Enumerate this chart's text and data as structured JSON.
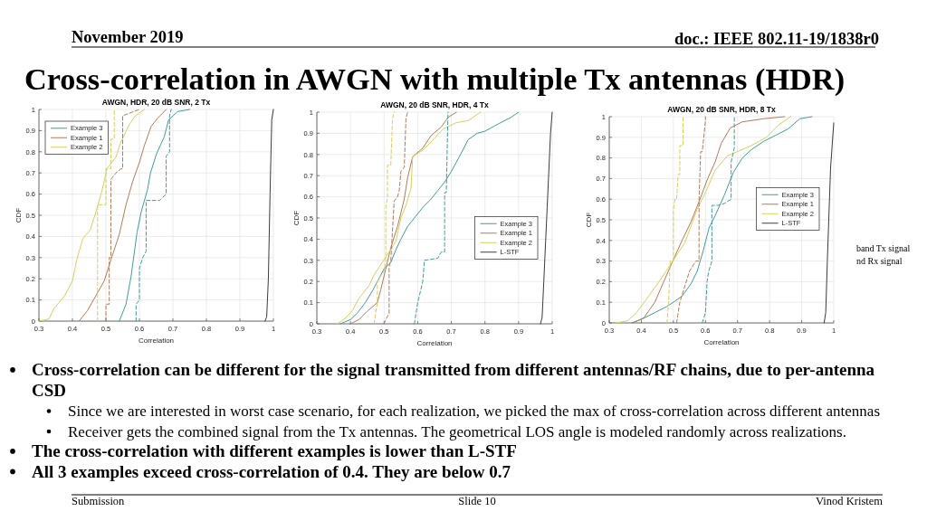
{
  "chart_data": [
    {
      "type": "other",
      "title": "Cross-correlation in AWGN with multiple Tx antennas (HDR)",
      "annotations": [
        "November 2019",
        "doc.: IEEE 802.11-19/1838r0",
        "band Tx signal",
        "nd Rx signal",
        "Cross-correlation can be different for the signal transmitted from different antennas/RF chains, due to per-antenna CSD",
        "Since we are interested in worst case scenario, for each realization, we picked the max of cross-correlation across different antennas",
        "Receiver gets the combined signal from the Tx antennas. The geometrical LOS angle is modeled randomly across realizations.",
        "The cross-correlation with different examples is lower than L-STF",
        "All 3 examples exceed cross-correlation of 0.4. They are below 0.7",
        "Submission",
        "Slide 10",
        "Vinod Kristem"
      ]
    },
    {
      "type": "line",
      "title": "AWGN, HDR, 20 dB SNR, 2 Tx",
      "xlabel": "Correlation",
      "ylabel": "CDF",
      "xlim": [
        0.3,
        1
      ],
      "xticks": [
        0.3,
        0.4,
        0.5,
        0.6,
        0.7,
        0.8,
        0.9,
        1
      ],
      "ylim": [
        0,
        1
      ],
      "yticks": [
        0,
        0.1,
        0.2,
        0.3,
        0.4,
        0.5,
        0.6,
        0.7,
        0.8,
        0.9,
        1
      ],
      "grid": true,
      "legend": "top left",
      "series": [
        {
          "name": "Example 3",
          "color": "#3f9d9c",
          "x": [
            0.54,
            0.56,
            0.575,
            0.593,
            0.606,
            0.624,
            0.633,
            0.651,
            0.674,
            0.687,
            0.714,
            0.75
          ],
          "values": [
            0,
            0.08,
            0.21,
            0.42,
            0.52,
            0.62,
            0.7,
            0.79,
            0.87,
            0.95,
            0.99,
            1
          ]
        },
        {
          "name": "Example 1",
          "color": "#b27b58",
          "x": [
            0.42,
            0.445,
            0.47,
            0.495,
            0.515,
            0.54,
            0.56,
            0.58,
            0.6,
            0.615,
            0.635,
            0.655,
            0.68
          ],
          "values": [
            0,
            0.05,
            0.12,
            0.19,
            0.29,
            0.41,
            0.55,
            0.66,
            0.75,
            0.83,
            0.92,
            0.96,
            1
          ]
        },
        {
          "name": "Example 2",
          "color": "#d8d05a",
          "x": [
            0.3,
            0.33,
            0.345,
            0.377,
            0.4,
            0.413,
            0.431,
            0.453,
            0.471,
            0.489,
            0.503,
            0.53,
            0.543,
            0.57,
            0.588,
            0.615
          ],
          "values": [
            0,
            0.01,
            0.06,
            0.12,
            0.19,
            0.29,
            0.39,
            0.43,
            0.52,
            0.62,
            0.72,
            0.775,
            0.84,
            0.93,
            0.97,
            1
          ]
        },
        {
          "color": "#3c3c3c",
          "x": [
            0.975,
            0.98,
            0.985,
            0.99,
            0.995,
            1
          ],
          "values": [
            0,
            0.02,
            0.2,
            0.6,
            0.95,
            1
          ]
        },
        {
          "color": "#3f9d9c",
          "line_style": "dashed",
          "x": [
            0.59,
            0.59,
            0.6,
            0.6,
            0.61,
            0.62,
            0.62,
            0.66,
            0.68,
            0.68,
            0.69,
            0.69,
            0.695
          ],
          "values": [
            0,
            0.08,
            0.1,
            0.25,
            0.3,
            0.33,
            0.57,
            0.57,
            0.6,
            0.78,
            0.8,
            0.97,
            1
          ]
        },
        {
          "color": "#b27b58",
          "line_style": "dashed",
          "x": [
            0.5,
            0.5,
            0.51,
            0.51,
            0.515,
            0.515,
            0.53,
            0.545,
            0.55,
            0.55,
            0.6
          ],
          "values": [
            0,
            0.08,
            0.08,
            0.3,
            0.3,
            0.67,
            0.7,
            0.72,
            0.72,
            0.97,
            1
          ]
        },
        {
          "color": "#d8d05a",
          "line_style": "dashed",
          "x": [
            0.475,
            0.475,
            0.5,
            0.5,
            0.515,
            0.515,
            0.525,
            0.525
          ],
          "values": [
            0,
            0.55,
            0.55,
            0.72,
            0.72,
            0.86,
            0.86,
            1
          ]
        }
      ]
    },
    {
      "type": "line",
      "title": "AWGN, 20 dB SNR, HDR, 4 Tx",
      "xlabel": "Correlation",
      "ylabel": "CDF",
      "xlim": [
        0.3,
        1
      ],
      "xticks": [
        0.3,
        0.4,
        0.5,
        0.6,
        0.7,
        0.8,
        0.9,
        1
      ],
      "ylim": [
        0,
        1
      ],
      "yticks": [
        0,
        0.1,
        0.2,
        0.3,
        0.4,
        0.5,
        0.6,
        0.7,
        0.8,
        0.9,
        1
      ],
      "grid": true,
      "legend": "right",
      "series": [
        {
          "name": "Example 3",
          "color": "#3f9d9c",
          "x": [
            0.37,
            0.4,
            0.42,
            0.444,
            0.467,
            0.49,
            0.5,
            0.52,
            0.535,
            0.55,
            0.57,
            0.59,
            0.615,
            0.64,
            0.66,
            0.68,
            0.7,
            0.724,
            0.75,
            0.777,
            0.8,
            0.84,
            0.877,
            0.9
          ],
          "values": [
            0,
            0.02,
            0.05,
            0.1,
            0.16,
            0.23,
            0.26,
            0.29,
            0.35,
            0.4,
            0.46,
            0.5,
            0.55,
            0.59,
            0.63,
            0.67,
            0.72,
            0.79,
            0.87,
            0.9,
            0.91,
            0.945,
            0.975,
            1
          ]
        },
        {
          "name": "Example 1",
          "color": "#b27b58",
          "x": [
            0.4,
            0.425,
            0.45,
            0.48,
            0.49,
            0.505,
            0.52,
            0.54,
            0.56,
            0.57,
            0.585,
            0.615,
            0.64,
            0.67,
            0.69,
            0.715
          ],
          "values": [
            0,
            0.02,
            0.06,
            0.1,
            0.16,
            0.26,
            0.36,
            0.46,
            0.59,
            0.69,
            0.79,
            0.83,
            0.89,
            0.93,
            0.975,
            1
          ]
        },
        {
          "name": "Example 2",
          "color": "#d8d05a",
          "x": [
            0.36,
            0.38,
            0.405,
            0.425,
            0.455,
            0.47,
            0.49,
            0.507,
            0.535,
            0.55,
            0.565,
            0.58,
            0.585,
            0.615,
            0.64,
            0.675,
            0.714,
            0.75,
            0.787
          ],
          "values": [
            0,
            0.02,
            0.06,
            0.12,
            0.18,
            0.23,
            0.28,
            0.32,
            0.39,
            0.5,
            0.56,
            0.64,
            0.79,
            0.82,
            0.86,
            0.92,
            0.95,
            0.96,
            1
          ]
        },
        {
          "name": "L-STF",
          "color": "#3c3c3c",
          "x": [
            0.965,
            0.97,
            0.975,
            0.985,
            0.995,
            1
          ],
          "values": [
            0,
            0.03,
            0.2,
            0.55,
            0.9,
            1
          ]
        },
        {
          "color": "#3f9d9c",
          "line_style": "dashed",
          "x": [
            0.59,
            0.595,
            0.6,
            0.615,
            0.62,
            0.66,
            0.67,
            0.68,
            0.68,
            0.685,
            0.69
          ],
          "values": [
            0,
            0.05,
            0.1,
            0.2,
            0.3,
            0.31,
            0.34,
            0.34,
            0.62,
            0.62,
            1
          ]
        },
        {
          "color": "#b27b58",
          "line_style": "dashed",
          "x": [
            0.5,
            0.505,
            0.515,
            0.515,
            0.52,
            0.53,
            0.54,
            0.545,
            0.55,
            0.56,
            0.565,
            0.57
          ],
          "values": [
            0,
            0.02,
            0.05,
            0.27,
            0.3,
            0.58,
            0.6,
            0.63,
            0.72,
            0.74,
            0.97,
            1
          ]
        },
        {
          "color": "#d8d05a",
          "line_style": "dashed",
          "x": [
            0.47,
            0.48,
            0.48,
            0.5,
            0.505,
            0.505,
            0.51,
            0.51,
            0.52,
            0.525,
            0.53
          ],
          "values": [
            0,
            0.1,
            0.2,
            0.25,
            0.3,
            0.55,
            0.6,
            0.75,
            0.75,
            0.97,
            1
          ]
        }
      ]
    },
    {
      "type": "line",
      "title": "AWGN, 20 dB SNR, HDR, 8 Tx",
      "xlabel": "Correlation",
      "ylabel": "CDF",
      "xlim": [
        0.3,
        1
      ],
      "xticks": [
        0.3,
        0.4,
        0.5,
        0.6,
        0.7,
        0.8,
        0.9,
        1
      ],
      "ylim": [
        0,
        1
      ],
      "yticks": [
        0,
        0.1,
        0.2,
        0.3,
        0.4,
        0.5,
        0.6,
        0.7,
        0.8,
        0.9,
        1
      ],
      "grid": true,
      "legend": "right",
      "series": [
        {
          "name": "Example 3",
          "color": "#3f9d9c",
          "x": [
            0.37,
            0.404,
            0.442,
            0.48,
            0.5,
            0.527,
            0.555,
            0.574,
            0.593,
            0.611,
            0.63,
            0.659,
            0.687,
            0.715,
            0.743,
            0.781,
            0.819,
            0.857,
            0.894,
            0.932
          ],
          "values": [
            0,
            0.02,
            0.05,
            0.08,
            0.1,
            0.13,
            0.19,
            0.25,
            0.35,
            0.46,
            0.52,
            0.62,
            0.73,
            0.8,
            0.84,
            0.88,
            0.91,
            0.94,
            0.99,
            1
          ]
        },
        {
          "name": "Example 1",
          "color": "#b27b58",
          "x": [
            0.375,
            0.408,
            0.442,
            0.47,
            0.498,
            0.527,
            0.555,
            0.583,
            0.607,
            0.63,
            0.649,
            0.677,
            0.715,
            0.781,
            0.847
          ],
          "values": [
            0,
            0.025,
            0.1,
            0.2,
            0.3,
            0.4,
            0.49,
            0.6,
            0.7,
            0.78,
            0.87,
            0.945,
            0.975,
            0.99,
            1
          ]
        },
        {
          "name": "Example 2",
          "color": "#d8d05a",
          "x": [
            0.32,
            0.357,
            0.385,
            0.423,
            0.46,
            0.498,
            0.536,
            0.574,
            0.602,
            0.63,
            0.668,
            0.706,
            0.743,
            0.79,
            0.828,
            0.866
          ],
          "values": [
            0,
            0.01,
            0.05,
            0.13,
            0.21,
            0.3,
            0.39,
            0.55,
            0.64,
            0.74,
            0.81,
            0.835,
            0.86,
            0.9,
            0.96,
            1
          ]
        },
        {
          "name": "L-STF",
          "color": "#3c3c3c",
          "x": [
            0.97,
            0.975,
            0.98,
            0.99,
            1
          ],
          "values": [
            0,
            0.05,
            0.3,
            0.75,
            0.97
          ]
        },
        {
          "color": "#3f9d9c",
          "line_style": "dashed",
          "x": [
            0.59,
            0.6,
            0.605,
            0.61,
            0.62,
            0.62,
            0.64,
            0.66,
            0.68,
            0.68,
            0.69,
            0.69
          ],
          "values": [
            0,
            0.05,
            0.2,
            0.25,
            0.3,
            0.57,
            0.57,
            0.58,
            0.6,
            0.78,
            0.85,
            1
          ]
        },
        {
          "color": "#b27b58",
          "line_style": "dashed",
          "x": [
            0.51,
            0.52,
            0.53,
            0.55,
            0.57,
            0.58,
            0.58,
            0.585,
            0.59,
            0.6,
            0.6
          ],
          "values": [
            0,
            0.1,
            0.15,
            0.25,
            0.3,
            0.3,
            0.6,
            0.83,
            0.83,
            0.98,
            1
          ]
        },
        {
          "color": "#d8d05a",
          "line_style": "dashed",
          "x": [
            0.48,
            0.485,
            0.49,
            0.5,
            0.5,
            0.505,
            0.51,
            0.515,
            0.52,
            0.52,
            0.53,
            0.53
          ],
          "values": [
            0,
            0.1,
            0.3,
            0.3,
            0.55,
            0.6,
            0.6,
            0.72,
            0.72,
            0.86,
            0.86,
            1
          ]
        }
      ]
    }
  ]
}
